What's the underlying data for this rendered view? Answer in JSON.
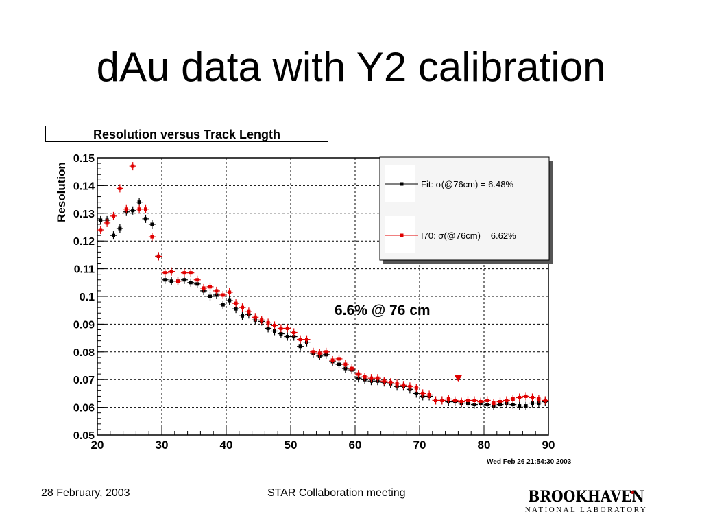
{
  "slide": {
    "title": "dAu data with Y2 calibration",
    "footer_date": "28 February, 2003",
    "footer_meeting": "STAR Collaboration  meeting",
    "logo_top": "BROOKHAVEN",
    "logo_bottom": "NATIONAL LABORATORY"
  },
  "chart_data": {
    "type": "scatter",
    "title": "Resolution versus Track Length",
    "xlabel": "",
    "ylabel": "Resolution",
    "xlim": [
      20,
      90
    ],
    "ylim": [
      0.05,
      0.15
    ],
    "xticks": [
      "20",
      "30",
      "40",
      "50",
      "60",
      "70",
      "80",
      "90"
    ],
    "yticks": [
      "0.05",
      "0.06",
      "0.07",
      "0.08",
      "0.09",
      "0.1",
      "0.11",
      "0.12",
      "0.13",
      "0.14",
      "0.15"
    ],
    "grid": true,
    "legend_position": "top-right",
    "annotation": "6.6% @ 76 cm",
    "timestamp": "Wed Feb 26 21:54:30 2003",
    "marker": {
      "x": 76,
      "y": 0.0705,
      "color": "#e00000"
    },
    "series": [
      {
        "name": "Fit:  σ(@76cm) =  6.48%",
        "color": "#000000",
        "x": [
          20.5,
          21.5,
          22.5,
          23.5,
          24.5,
          25.5,
          26.5,
          27.5,
          28.5,
          29.5,
          30.5,
          31.5,
          32.5,
          33.5,
          34.5,
          35.5,
          36.5,
          37.5,
          38.5,
          39.5,
          40.5,
          41.5,
          42.5,
          43.5,
          44.5,
          45.5,
          46.5,
          47.5,
          48.5,
          49.5,
          50.5,
          51.5,
          52.5,
          53.5,
          54.5,
          55.5,
          56.5,
          57.5,
          58.5,
          59.5,
          60.5,
          61.5,
          62.5,
          63.5,
          64.5,
          65.5,
          66.5,
          67.5,
          68.5,
          69.5,
          70.5,
          71.5,
          72.5,
          73.5,
          74.5,
          75.5,
          76.5,
          77.5,
          78.5,
          79.5,
          80.5,
          81.5,
          82.5,
          83.5,
          84.5,
          85.5,
          86.5,
          87.5,
          88.5,
          89.5
        ],
        "y": [
          0.1275,
          0.1275,
          0.122,
          0.1245,
          0.1305,
          0.131,
          0.134,
          0.128,
          0.126,
          0.1145,
          0.106,
          0.1055,
          0.1055,
          0.106,
          0.105,
          0.1045,
          0.102,
          0.1,
          0.1005,
          0.097,
          0.0985,
          0.0955,
          0.093,
          0.0935,
          0.0915,
          0.091,
          0.0885,
          0.0875,
          0.0865,
          0.0855,
          0.0855,
          0.082,
          0.0835,
          0.0795,
          0.0785,
          0.079,
          0.0765,
          0.0755,
          0.074,
          0.0735,
          0.0705,
          0.07,
          0.0695,
          0.0695,
          0.069,
          0.0685,
          0.0675,
          0.0675,
          0.0665,
          0.065,
          0.064,
          0.064,
          0.0625,
          0.0625,
          0.062,
          0.062,
          0.0615,
          0.0615,
          0.061,
          0.0615,
          0.061,
          0.0605,
          0.061,
          0.0615,
          0.061,
          0.0605,
          0.0605,
          0.0615,
          0.0615,
          0.062
        ]
      },
      {
        "name": "I70:  σ(@76cm) =  6.62%",
        "color": "#e00000",
        "x": [
          20.5,
          21.5,
          22.5,
          23.5,
          24.5,
          25.5,
          26.5,
          27.5,
          28.5,
          29.5,
          30.5,
          31.5,
          32.5,
          33.5,
          34.5,
          35.5,
          36.5,
          37.5,
          38.5,
          39.5,
          40.5,
          41.5,
          42.5,
          43.5,
          44.5,
          45.5,
          46.5,
          47.5,
          48.5,
          49.5,
          50.5,
          51.5,
          52.5,
          53.5,
          54.5,
          55.5,
          56.5,
          57.5,
          58.5,
          59.5,
          60.5,
          61.5,
          62.5,
          63.5,
          64.5,
          65.5,
          66.5,
          67.5,
          68.5,
          69.5,
          70.5,
          71.5,
          72.5,
          73.5,
          74.5,
          75.5,
          76.5,
          77.5,
          78.5,
          79.5,
          80.5,
          81.5,
          82.5,
          83.5,
          84.5,
          85.5,
          86.5,
          87.5,
          88.5,
          89.5
        ],
        "y": [
          0.124,
          0.1265,
          0.129,
          0.139,
          0.1315,
          0.147,
          0.1315,
          0.1315,
          0.1215,
          0.1145,
          0.1085,
          0.109,
          0.1055,
          0.1085,
          0.1085,
          0.106,
          0.103,
          0.1035,
          0.102,
          0.1005,
          0.1015,
          0.0975,
          0.096,
          0.0945,
          0.0925,
          0.0915,
          0.0905,
          0.0895,
          0.0885,
          0.0885,
          0.087,
          0.0845,
          0.0845,
          0.08,
          0.0795,
          0.08,
          0.077,
          0.0775,
          0.0755,
          0.074,
          0.072,
          0.071,
          0.0705,
          0.0705,
          0.0695,
          0.069,
          0.0685,
          0.068,
          0.0675,
          0.067,
          0.065,
          0.0645,
          0.0625,
          0.0625,
          0.063,
          0.0625,
          0.062,
          0.0625,
          0.0625,
          0.062,
          0.0625,
          0.0615,
          0.062,
          0.0625,
          0.063,
          0.0635,
          0.064,
          0.0635,
          0.063,
          0.0625
        ]
      }
    ]
  }
}
